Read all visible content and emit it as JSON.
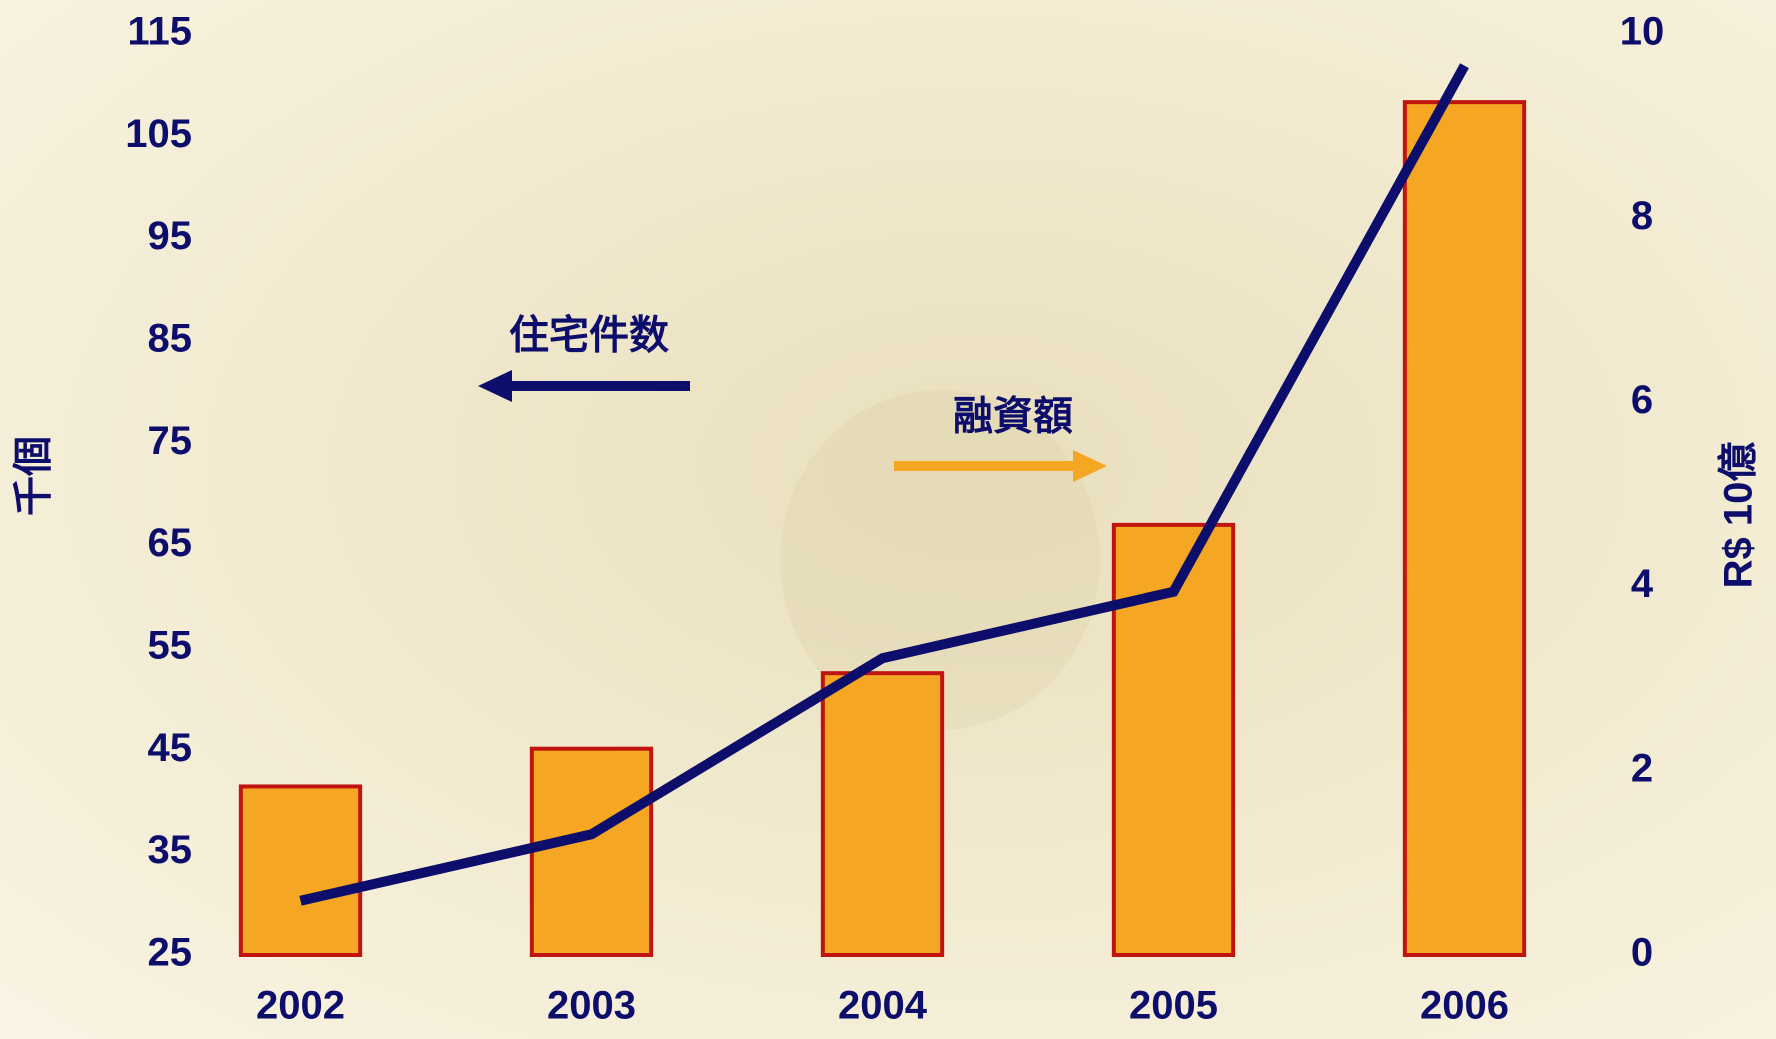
{
  "chart_data": {
    "type": "bar_line",
    "categories": [
      "2002",
      "2003",
      "2004",
      "2005",
      "2006"
    ],
    "series": [
      {
        "name": "融資額",
        "type": "bar",
        "axis": "y2",
        "color": "#f5a623",
        "edgecolor": "#c0150f",
        "values": [
          1.83,
          2.24,
          3.06,
          4.67,
          9.26
        ]
      },
      {
        "name": "住宅件数",
        "type": "line",
        "axis": "y",
        "color": "#0d0d6b",
        "values": [
          30.3,
          36.8,
          54.0,
          60.5,
          111.9
        ]
      }
    ],
    "ylabel": "千個",
    "y2label": "R$ 10億",
    "ylim": [
      25,
      115
    ],
    "yticks": [
      25,
      35,
      45,
      55,
      65,
      75,
      85,
      95,
      105,
      115
    ],
    "y2lim": [
      0,
      10
    ],
    "y2ticks": [
      0,
      2,
      4,
      6,
      8,
      10
    ],
    "grid": false
  }
}
